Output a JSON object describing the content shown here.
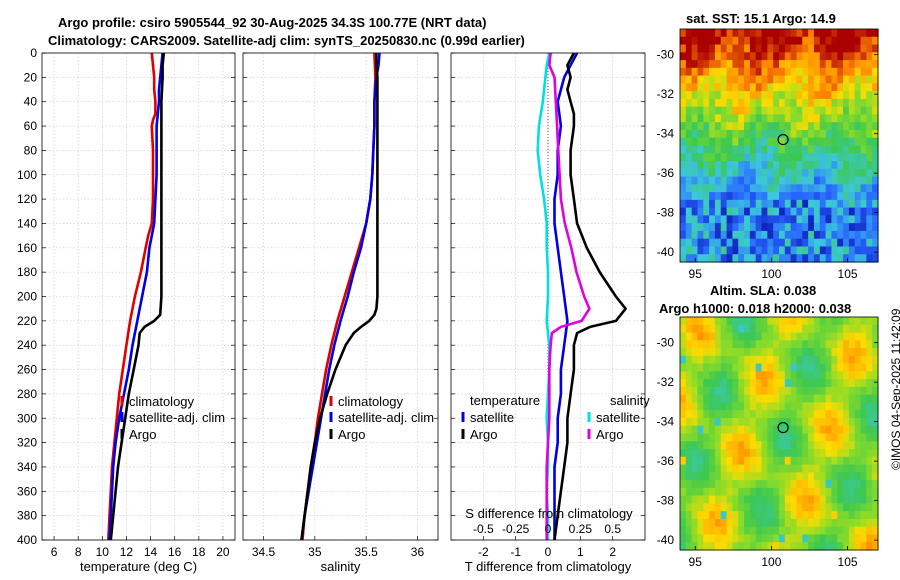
{
  "title": {
    "line1": "Argo profile: csiro 5905544_92 30-Aug-2025 34.3S 100.77E (NRT data)",
    "line2": "Climatology: CARS2009. Satellite-adj clim: synTS_20250830.nc (0.99d earlier)"
  },
  "watermark": "©IMOS 04-Sep-2025 11:42:09",
  "colors": {
    "climatology": "#e00000",
    "satellite": "#0000e0",
    "argo": "#000000",
    "sal_sat": "#00e0e0",
    "sal_argo": "#e000e0"
  },
  "chart_data": [
    {
      "id": "temp",
      "type": "line",
      "xlabel": "temperature (deg C)",
      "ylabel": "depth",
      "xlim": [
        5,
        21
      ],
      "xticks": [
        6,
        8,
        10,
        12,
        14,
        16,
        18,
        20
      ],
      "ylim": [
        0,
        400
      ],
      "yticks": [
        0,
        20,
        40,
        60,
        80,
        100,
        120,
        140,
        160,
        180,
        200,
        220,
        240,
        260,
        280,
        300,
        320,
        340,
        360,
        380,
        400
      ],
      "legend": [
        "climatology",
        "satellite-adj. clim",
        "Argo"
      ],
      "series": [
        {
          "name": "climatology",
          "color": "#e00000",
          "depth": [
            0,
            10,
            20,
            30,
            40,
            50,
            55,
            60,
            80,
            100,
            120,
            140,
            150,
            160,
            180,
            200,
            220,
            240,
            260,
            280,
            300,
            320,
            340,
            360,
            380,
            400
          ],
          "values": [
            14.1,
            14.2,
            14.3,
            14.3,
            14.4,
            14.4,
            14.2,
            14.1,
            14.2,
            14.2,
            14.2,
            14.1,
            13.8,
            13.6,
            13.2,
            12.7,
            12.3,
            12.0,
            11.7,
            11.4,
            11.2,
            11.0,
            10.8,
            10.7,
            10.6,
            10.5
          ]
        },
        {
          "name": "satellite-adj. clim",
          "color": "#0000e0",
          "depth": [
            0,
            10,
            20,
            30,
            40,
            50,
            60,
            80,
            100,
            120,
            140,
            150,
            160,
            180,
            200,
            220,
            240,
            260,
            280,
            300,
            320,
            340,
            360,
            380,
            400
          ],
          "values": [
            15.0,
            14.9,
            14.8,
            14.7,
            14.7,
            14.6,
            14.5,
            14.5,
            14.5,
            14.4,
            14.3,
            14.1,
            13.9,
            13.7,
            13.3,
            12.9,
            12.5,
            12.2,
            11.8,
            11.4,
            11.1,
            10.9,
            10.8,
            10.7,
            10.6
          ]
        },
        {
          "name": "Argo",
          "color": "#000000",
          "depth": [
            0,
            10,
            20,
            40,
            60,
            80,
            100,
            120,
            140,
            160,
            180,
            200,
            215,
            220,
            225,
            230,
            240,
            260,
            280,
            300,
            320,
            340,
            360,
            380,
            400
          ],
          "values": [
            15.1,
            15.0,
            15.0,
            14.9,
            14.9,
            14.9,
            14.9,
            14.9,
            14.9,
            14.9,
            14.9,
            14.9,
            14.8,
            14.3,
            13.5,
            13.1,
            13.0,
            12.6,
            12.2,
            11.9,
            11.6,
            11.3,
            11.1,
            10.9,
            10.7
          ]
        }
      ]
    },
    {
      "id": "sal",
      "type": "line",
      "xlabel": "salinity",
      "ylabel": "depth",
      "xlim": [
        34.3,
        36.2
      ],
      "xticks": [
        34.5,
        35,
        35.5,
        36
      ],
      "ylim": [
        0,
        400
      ],
      "yticks": [
        0,
        20,
        40,
        60,
        80,
        100,
        120,
        140,
        160,
        180,
        200,
        220,
        240,
        260,
        280,
        300,
        320,
        340,
        360,
        380,
        400
      ],
      "legend": [
        "climatology",
        "satellite-adj. clim",
        "Argo"
      ],
      "series": [
        {
          "name": "climatology",
          "color": "#e00000",
          "depth": [
            0,
            20,
            40,
            60,
            80,
            100,
            120,
            140,
            160,
            180,
            200,
            220,
            240,
            260,
            280,
            300,
            320,
            340,
            360,
            380,
            400
          ],
          "values": [
            35.58,
            35.59,
            35.58,
            35.58,
            35.57,
            35.56,
            35.54,
            35.5,
            35.43,
            35.36,
            35.29,
            35.22,
            35.16,
            35.11,
            35.07,
            35.03,
            35.0,
            34.96,
            34.93,
            34.9,
            34.88
          ]
        },
        {
          "name": "satellite-adj. clim",
          "color": "#0000e0",
          "depth": [
            0,
            10,
            20,
            40,
            60,
            80,
            100,
            120,
            140,
            160,
            180,
            200,
            220,
            240,
            260,
            280,
            300,
            320,
            340,
            360,
            380,
            400
          ],
          "values": [
            35.63,
            35.62,
            35.6,
            35.58,
            35.58,
            35.57,
            35.56,
            35.54,
            35.5,
            35.45,
            35.38,
            35.32,
            35.25,
            35.19,
            35.14,
            35.1,
            35.06,
            35.02,
            34.98,
            34.94,
            34.9,
            34.87
          ]
        },
        {
          "name": "Argo",
          "color": "#000000",
          "depth": [
            0,
            10,
            20,
            40,
            60,
            80,
            100,
            120,
            140,
            160,
            180,
            200,
            210,
            215,
            220,
            225,
            230,
            240,
            260,
            280,
            300,
            320,
            340,
            360,
            380,
            400
          ],
          "values": [
            35.6,
            35.6,
            35.61,
            35.61,
            35.61,
            35.61,
            35.61,
            35.61,
            35.61,
            35.61,
            35.61,
            35.61,
            35.6,
            35.58,
            35.53,
            35.45,
            35.38,
            35.3,
            35.2,
            35.12,
            35.05,
            35.0,
            34.96,
            34.93,
            34.9,
            34.87
          ]
        }
      ]
    },
    {
      "id": "diff",
      "type": "line",
      "xlabel": "T difference from climatology",
      "xlabel_top": "S difference from climatology",
      "ylabel": "depth",
      "xlim": [
        -3,
        3
      ],
      "xticks": [
        -2,
        -1,
        0,
        1,
        2
      ],
      "xticks_s": [
        "-0.5",
        "-0.25",
        "0",
        "0.25",
        "0.5"
      ],
      "xticks_s_vals": [
        -0.5,
        -0.25,
        0,
        0.25,
        0.5
      ],
      "ylim": [
        0,
        400
      ],
      "yticks": [
        0,
        20,
        40,
        60,
        80,
        100,
        120,
        140,
        160,
        180,
        200,
        220,
        240,
        260,
        280,
        300,
        320,
        340,
        360,
        380,
        400
      ],
      "legend_t": {
        "heading": "temperature",
        "items": [
          "satellite",
          "Argo"
        ]
      },
      "legend_s": {
        "heading": "salinity",
        "items": [
          "satellite",
          "Argo"
        ]
      },
      "series": [
        {
          "name": "T satellite",
          "color": "#0000e0",
          "depth": [
            0,
            10,
            20,
            40,
            60,
            80,
            100,
            120,
            140,
            160,
            180,
            200,
            220,
            240,
            260,
            280,
            300,
            320,
            340,
            360,
            380,
            400
          ],
          "values": [
            0.9,
            0.7,
            0.5,
            0.3,
            0.4,
            0.3,
            0.3,
            0.2,
            0.2,
            0.3,
            0.4,
            0.5,
            0.6,
            0.5,
            0.4,
            0.4,
            0.3,
            0.3,
            0.2,
            0.2,
            0.2,
            0.2
          ]
        },
        {
          "name": "T Argo",
          "color": "#000000",
          "depth": [
            0,
            10,
            20,
            30,
            40,
            50,
            60,
            80,
            100,
            120,
            140,
            160,
            180,
            200,
            210,
            220,
            225,
            230,
            240,
            260,
            280,
            300,
            320,
            340,
            360,
            380,
            400
          ],
          "values": [
            0.8,
            0.6,
            0.7,
            0.6,
            0.7,
            0.8,
            0.8,
            0.7,
            0.7,
            0.8,
            0.9,
            1.2,
            1.6,
            2.1,
            2.4,
            2.1,
            1.3,
            0.9,
            0.8,
            0.8,
            0.7,
            0.6,
            0.6,
            0.5,
            0.4,
            0.3,
            0.2
          ]
        },
        {
          "name": "S satellite",
          "color": "#00e0e0",
          "depth": [
            0,
            10,
            20,
            40,
            60,
            80,
            100,
            120,
            140,
            160,
            180,
            200,
            220,
            240,
            260,
            280,
            300,
            320,
            340,
            360,
            380,
            400
          ],
          "values": [
            0.01,
            -0.01,
            -0.02,
            -0.04,
            -0.07,
            -0.08,
            -0.06,
            -0.03,
            -0.01,
            -0.01,
            0,
            0,
            -0.01,
            0.01,
            0.01,
            0,
            -0.01,
            0,
            0,
            -0.01,
            0,
            0
          ]
        },
        {
          "name": "S Argo",
          "color": "#e000e0",
          "depth": [
            0,
            10,
            20,
            40,
            60,
            80,
            100,
            120,
            140,
            160,
            180,
            200,
            210,
            220,
            225,
            230,
            240,
            260,
            280,
            300,
            320,
            340,
            360,
            380,
            400
          ],
          "values": [
            0.02,
            0.01,
            0.05,
            0.06,
            0.07,
            0.08,
            0.09,
            0.1,
            0.13,
            0.18,
            0.22,
            0.28,
            0.32,
            0.26,
            0.1,
            0.03,
            0.02,
            0.01,
            0.01,
            0.01,
            0,
            -0.01,
            -0.01,
            -0.01,
            -0.01
          ]
        }
      ]
    },
    {
      "id": "sst-map",
      "type": "heatmap",
      "title": "sat. SST: 15.1 Argo: 14.9",
      "xticks": [
        95,
        100,
        105
      ],
      "yticks": [
        -30,
        -32,
        -34,
        -36,
        -38,
        -40
      ],
      "xlim": [
        94,
        107
      ],
      "ylim": [
        -40.5,
        -28.7
      ],
      "marker": {
        "lon": 100.77,
        "lat": -34.3
      }
    },
    {
      "id": "sla-map",
      "type": "heatmap",
      "title_line1": "Altim. SLA: 0.038",
      "title_line2": "Argo h1000: 0.018 h2000: 0.038",
      "xticks": [
        95,
        100,
        105
      ],
      "yticks": [
        -30,
        -32,
        -34,
        -36,
        -38,
        -40
      ],
      "xlim": [
        94,
        107
      ],
      "ylim": [
        -40.5,
        -28.7
      ],
      "marker": {
        "lon": 100.77,
        "lat": -34.3
      }
    }
  ]
}
